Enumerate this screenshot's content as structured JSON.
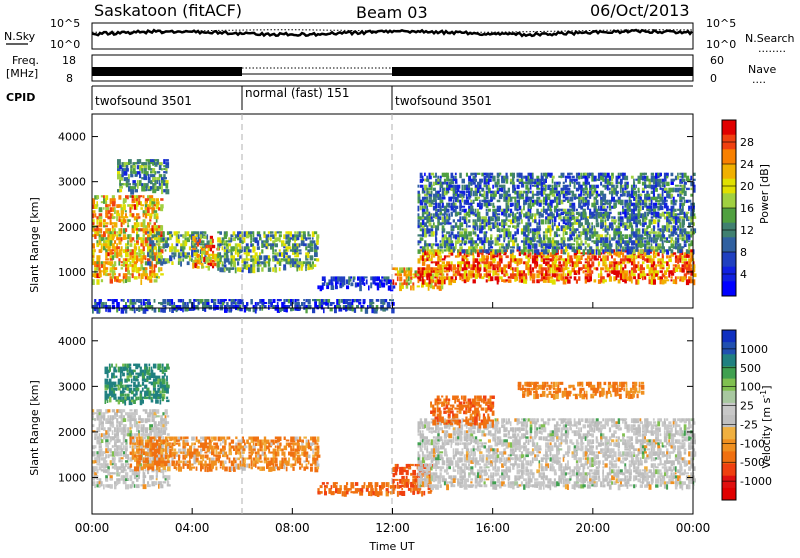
{
  "header": {
    "station": "Saskatoon (fitACF)",
    "beam": "Beam 03",
    "date": "06/Oct/2013"
  },
  "strips": {
    "nsky": {
      "label": "N.Sky",
      "left_ticks": [
        "10^5",
        "10^0"
      ],
      "right_ticks": [
        "10^5",
        "10^0"
      ],
      "right_label": "N.Search",
      "right_legend": "........"
    },
    "freq": {
      "label_line1": "Freq.",
      "label_line2": "[MHz]",
      "left_ticks": [
        "18",
        "8"
      ],
      "right_ticks": [
        "60",
        "0"
      ],
      "right_label": "Nave",
      "right_legend": "...."
    },
    "cpid": {
      "label": "CPID",
      "segments": [
        {
          "name": "twofsound 3501",
          "start_hour": 0,
          "end_hour": 6
        },
        {
          "name": "normal (fast) 151",
          "start_hour": 6,
          "end_hour": 12
        },
        {
          "name": "twofsound 3501",
          "start_hour": 12,
          "end_hour": 24
        }
      ]
    }
  },
  "panels": {
    "power": {
      "ylabel": "Slant Range [km]",
      "cbar_label": "Power [dB]",
      "cbar_ticks": [
        "28",
        "24",
        "20",
        "16",
        "12",
        "8",
        "4"
      ],
      "cbar_colors": [
        "#e00000",
        "#f04010",
        "#f88000",
        "#f0b000",
        "#e0e000",
        "#a0d040",
        "#50a040",
        "#408070",
        "#3060a0",
        "#2040c0",
        "#1020e0",
        "#0000ff"
      ]
    },
    "velocity": {
      "ylabel": "Slant Range [km]",
      "cbar_label": "Velocity [m s",
      "cbar_label_sup": "-1",
      "cbar_label_end": "]",
      "cbar_ticks": [
        "1000",
        "500",
        "100",
        "25",
        "-25",
        "-100",
        "-500",
        "-1000"
      ],
      "cbar_colors": [
        "#1030c0",
        "#2050b0",
        "#208080",
        "#40a050",
        "#80c050",
        "#a8c8a0",
        "#c8c8c8",
        "#c0c0c0",
        "#f0b040",
        "#f09020",
        "#f07010",
        "#f04010",
        "#e01010",
        "#e00000"
      ]
    }
  },
  "xaxis": {
    "ticks": [
      "00:00",
      "04:00",
      "08:00",
      "12:00",
      "16:00",
      "20:00",
      "00:00"
    ],
    "label": "Time UT"
  },
  "chart_data": {
    "type": "heatmap",
    "title": "Saskatoon (fitACF)",
    "subtitle": "Beam 03",
    "date": "06/Oct/2013",
    "x": {
      "label": "Time UT",
      "range_hours": [
        0,
        24
      ],
      "ticks": [
        "00:00",
        "04:00",
        "08:00",
        "12:00",
        "16:00",
        "20:00",
        "00:00"
      ]
    },
    "y": {
      "label": "Slant Range [km]",
      "range": [
        200,
        4500
      ],
      "ticks": [
        1000,
        2000,
        3000,
        4000
      ]
    },
    "panels": [
      {
        "quantity": "Power [dB]",
        "colorbar_ticks": [
          4,
          8,
          12,
          16,
          20,
          24,
          28
        ],
        "regions": [
          {
            "t": [
              0.0,
              2.8
            ],
            "r": [
              800,
              2700
            ],
            "level": 22
          },
          {
            "t": [
              1.0,
              3.0
            ],
            "r": [
              2800,
              3500
            ],
            "level": 12
          },
          {
            "t": [
              2.2,
              4.6
            ],
            "r": [
              1200,
              1900
            ],
            "level": 14
          },
          {
            "t": [
              4.0,
              5.0
            ],
            "r": [
              1100,
              1800
            ],
            "level": 24
          },
          {
            "t": [
              5.0,
              9.0
            ],
            "r": [
              1100,
              1900
            ],
            "level": 14
          },
          {
            "t": [
              0.0,
              12.0
            ],
            "r": [
              200,
              400
            ],
            "level": 8
          },
          {
            "t": [
              9.0,
              12.0
            ],
            "r": [
              700,
              900
            ],
            "level": 5
          },
          {
            "t": [
              12.0,
              14.0
            ],
            "r": [
              700,
              1100
            ],
            "level": 22
          },
          {
            "t": [
              13.0,
              24.0
            ],
            "r": [
              800,
              1500
            ],
            "level": 26
          },
          {
            "t": [
              13.0,
              24.0
            ],
            "r": [
              1500,
              2300
            ],
            "level": 12
          },
          {
            "t": [
              13.0,
              24.0
            ],
            "r": [
              2300,
              3200
            ],
            "level": 10
          }
        ]
      },
      {
        "quantity": "Velocity [m s-1]",
        "colorbar_ticks": [
          1000,
          500,
          100,
          25,
          -25,
          -100,
          -500,
          -1000
        ],
        "regions": [
          {
            "t": [
              0.0,
              3.0
            ],
            "r": [
              800,
              2500
            ],
            "value": 0
          },
          {
            "t": [
              0.5,
              3.0
            ],
            "r": [
              2700,
              3500
            ],
            "value": 200
          },
          {
            "t": [
              1.5,
              9.0
            ],
            "r": [
              1200,
              1900
            ],
            "value": -150
          },
          {
            "t": [
              9.0,
              12.0
            ],
            "r": [
              700,
              900
            ],
            "value": -300
          },
          {
            "t": [
              12.0,
              13.5
            ],
            "r": [
              700,
              1300
            ],
            "value": -400
          },
          {
            "t": [
              13.0,
              24.0
            ],
            "r": [
              800,
              2300
            ],
            "value": 0
          },
          {
            "t": [
              13.5,
              16.0
            ],
            "r": [
              2200,
              2800
            ],
            "value": -300
          },
          {
            "t": [
              17.0,
              22.0
            ],
            "r": [
              2800,
              3100
            ],
            "value": -200
          }
        ]
      }
    ]
  }
}
